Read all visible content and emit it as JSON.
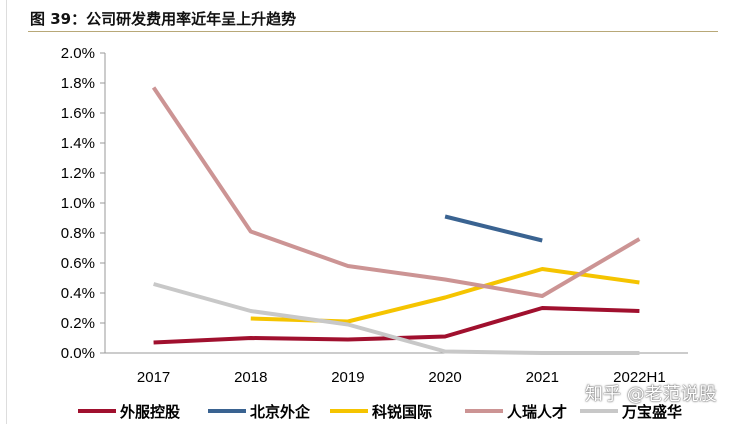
{
  "title": "图 39：公司研发费用率近年呈上升趋势",
  "watermark": "知乎 @老范说股",
  "chart_data": {
    "type": "line",
    "title": "图 39：公司研发费用率近年呈上升趋势",
    "categories": [
      "2017",
      "2018",
      "2019",
      "2020",
      "2021",
      "2022H1"
    ],
    "ylim": [
      0,
      2.0
    ],
    "yticks": [
      "0.0%",
      "0.2%",
      "0.4%",
      "0.6%",
      "0.8%",
      "1.0%",
      "1.2%",
      "1.4%",
      "1.6%",
      "1.8%",
      "2.0%"
    ],
    "unit": "%",
    "grid": false,
    "legend": "bottom",
    "series": [
      {
        "name": "外服控股",
        "color": "#a0102e",
        "values": [
          0.07,
          0.1,
          0.09,
          0.11,
          0.3,
          0.28
        ]
      },
      {
        "name": "北京外企",
        "color": "#3a6391",
        "values": [
          null,
          null,
          null,
          0.91,
          0.75,
          null
        ]
      },
      {
        "name": "科锐国际",
        "color": "#f5c400",
        "values": [
          null,
          0.23,
          0.21,
          0.37,
          0.56,
          0.47
        ]
      },
      {
        "name": "人瑞人才",
        "color": "#cc9494",
        "values": [
          1.77,
          0.81,
          0.58,
          0.49,
          0.38,
          0.76
        ]
      },
      {
        "name": "万宝盛华",
        "color": "#c8c8c8",
        "values": [
          0.46,
          0.28,
          0.19,
          0.01,
          0.0,
          0.0
        ]
      }
    ]
  }
}
